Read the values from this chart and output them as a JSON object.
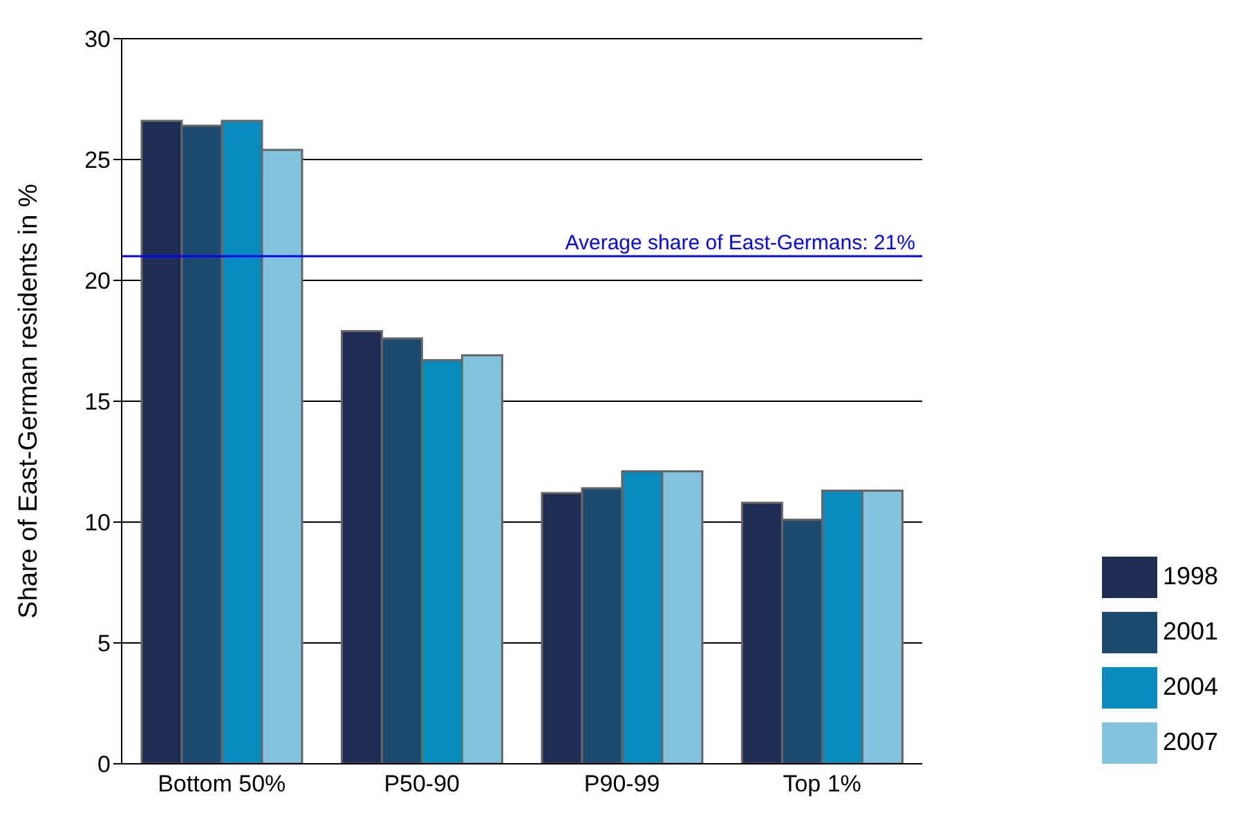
{
  "chart_data": {
    "type": "bar",
    "ylabel": "Share of East-German residents in %",
    "categories": [
      "Bottom 50%",
      "P50-90",
      "P90-99",
      "Top 1%"
    ],
    "series": [
      {
        "name": "1998",
        "color": "#1f2d55",
        "values": [
          26.6,
          17.9,
          11.2,
          10.8
        ]
      },
      {
        "name": "2001",
        "color": "#1e4a70",
        "values": [
          26.4,
          17.6,
          11.4,
          10.1
        ]
      },
      {
        "name": "2004",
        "color": "#0a8bbd",
        "values": [
          26.6,
          16.7,
          12.1,
          11.3
        ]
      },
      {
        "name": "2007",
        "color": "#83c3de",
        "values": [
          25.4,
          16.9,
          12.1,
          11.3
        ]
      }
    ],
    "ylim": [
      0,
      30
    ],
    "yticks": [
      0,
      5,
      10,
      15,
      20,
      25,
      30
    ],
    "grid": "y",
    "legend": "bottom right",
    "ref_lines": [
      {
        "axis": "y",
        "value": 21,
        "label": "Average share of East-Germans: 21%",
        "color": "#0000ff"
      }
    ]
  }
}
